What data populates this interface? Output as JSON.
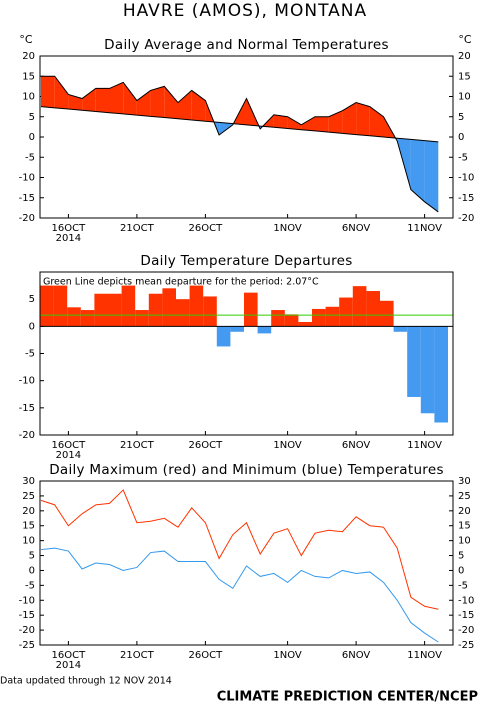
{
  "title": "HAVRE (AMOS), MONTANA",
  "footer_note": "Data updated through 12 NOV 2014",
  "credit": "CLIMATE PREDICTION CENTER/NCEP",
  "chart_data": [
    {
      "type": "area",
      "title": "Daily Average and Normal Temperatures",
      "y_unit_label": "°C",
      "categories": [
        null,
        null,
        "16OCT",
        null,
        null,
        null,
        null,
        "21OCT",
        null,
        null,
        null,
        null,
        "26OCT",
        null,
        null,
        null,
        null,
        null,
        "1NOV",
        null,
        null,
        null,
        null,
        "6NOV",
        null,
        null,
        null,
        null,
        "11NOV",
        null
      ],
      "x_year_label": "2014",
      "series": [
        {
          "color": "#000000",
          "values": [
            15,
            15,
            10.5,
            9.5,
            12,
            12,
            13.5,
            9,
            11.5,
            12.5,
            8.5,
            11.5,
            9,
            0.5,
            3,
            9.5,
            2,
            5.5,
            5,
            3,
            5,
            5,
            6.5,
            8.5,
            7.5,
            5,
            -1,
            -13,
            -16,
            -18.5
          ]
        },
        {
          "color": "#000000",
          "values": [
            7.5,
            7.2,
            6.9,
            6.6,
            6.3,
            6.0,
            5.7,
            5.4,
            5.1,
            4.8,
            4.5,
            4.2,
            3.9,
            3.6,
            3.3,
            3.0,
            2.7,
            2.4,
            2.1,
            1.8,
            1.5,
            1.2,
            0.9,
            0.6,
            0.3,
            0.0,
            -0.3,
            -0.6,
            -0.9,
            -1.2
          ]
        }
      ],
      "fill_above": "#ff3300",
      "fill_below": "#4499f0",
      "ylim": [
        -20,
        20
      ],
      "yticks": [
        -20,
        -15,
        -10,
        -5,
        0,
        5,
        10,
        15,
        20
      ],
      "right_axis": true
    },
    {
      "type": "bar",
      "title": "Daily Temperature Departures",
      "annotation": "Green Line depicts mean departure for the period: 2.07°C",
      "mean_departure": 2.07,
      "mean_color": "#33cc00",
      "categories": [
        null,
        null,
        "16OCT",
        null,
        null,
        null,
        null,
        "21OCT",
        null,
        null,
        null,
        null,
        "26OCT",
        null,
        null,
        null,
        null,
        null,
        "1NOV",
        null,
        null,
        null,
        null,
        "6NOV",
        null,
        null,
        null,
        null,
        "11NOV",
        null
      ],
      "x_year_label": "2014",
      "values": [
        7.5,
        7.5,
        3.5,
        3,
        6,
        6,
        7.5,
        3,
        6,
        7,
        5,
        7.5,
        5.5,
        -3.7,
        -1,
        6.2,
        -1.3,
        3,
        2.2,
        0.8,
        3.2,
        3.6,
        5.3,
        7.4,
        6.5,
        4.7,
        -1,
        -13,
        -16,
        -17.7
      ],
      "positive_color": "#ff3300",
      "negative_color": "#4499f0",
      "ylim": [
        -20,
        10
      ],
      "yticks": [
        -20,
        -15,
        -10,
        -5,
        0,
        5
      ],
      "right_axis": false
    },
    {
      "type": "line",
      "title": "Daily Maximum (red) and Minimum (blue) Temperatures",
      "categories": [
        null,
        null,
        "16OCT",
        null,
        null,
        null,
        null,
        "21OCT",
        null,
        null,
        null,
        null,
        "26OCT",
        null,
        null,
        null,
        null,
        null,
        "1NOV",
        null,
        null,
        null,
        null,
        "6NOV",
        null,
        null,
        null,
        null,
        "11NOV",
        null
      ],
      "x_year_label": "2014",
      "series": [
        {
          "color": "#ff3300",
          "values": [
            23.5,
            22,
            15,
            19,
            22,
            22.5,
            27,
            16,
            16.5,
            17.5,
            14.5,
            21,
            16,
            4,
            12,
            16,
            5.5,
            12.5,
            14,
            5,
            12.5,
            13.5,
            13,
            18,
            15,
            14.5,
            7.5,
            -9,
            -12,
            -13
          ]
        },
        {
          "color": "#3399ee",
          "values": [
            7,
            7.5,
            6.5,
            0.5,
            2.5,
            2,
            0,
            1,
            6,
            6.5,
            3,
            3,
            3,
            -3,
            -6,
            1.5,
            -2,
            -1,
            -4,
            0,
            -2,
            -2.5,
            0,
            -1,
            -0.5,
            -4,
            -10,
            -17.5,
            -21,
            -24
          ]
        }
      ],
      "ylim": [
        -25,
        30
      ],
      "yticks": [
        -25,
        -20,
        -15,
        -10,
        -5,
        0,
        5,
        10,
        15,
        20,
        25,
        30
      ],
      "right_axis": true
    }
  ]
}
